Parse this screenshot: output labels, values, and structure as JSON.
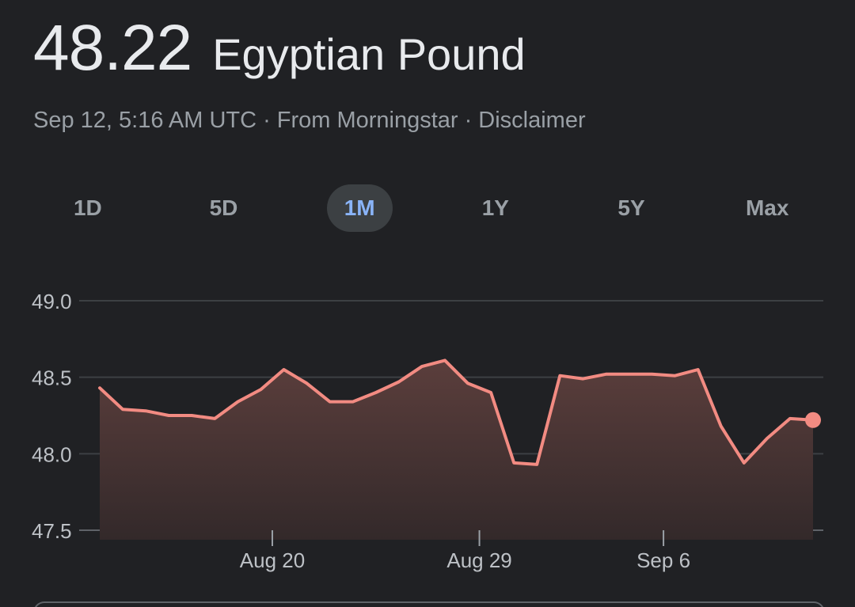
{
  "header": {
    "price": "48.22",
    "currency": "Egyptian Pound"
  },
  "meta": {
    "timestamp": "Sep 12, 5:16 AM UTC",
    "source": "From Morningstar",
    "disclaimer": "Disclaimer"
  },
  "ranges": {
    "items": [
      "1D",
      "5D",
      "1M",
      "1Y",
      "5Y",
      "Max"
    ],
    "selected": "1M"
  },
  "colors": {
    "line": "#f28b82",
    "fill_top": "#5b3e3c",
    "fill_bottom": "#33292a",
    "grid": "#3c4043",
    "axis_text": "#bdc1c6",
    "accent": "#8ab4f8"
  },
  "chart_data": {
    "type": "area",
    "title": "",
    "xlabel": "",
    "ylabel": "",
    "ylim": [
      47.5,
      49.0
    ],
    "y_ticks": [
      "49.0",
      "48.5",
      "48.0",
      "47.5"
    ],
    "x_ticks": [
      "Aug 20",
      "Aug 29",
      "Sep 6"
    ],
    "grid": true,
    "series": [
      {
        "values": [
          48.43,
          48.29,
          48.28,
          48.25,
          48.25,
          48.23,
          48.34,
          48.42,
          48.55,
          48.46,
          48.34,
          48.34,
          48.4,
          48.47,
          48.57,
          48.61,
          48.46,
          48.4,
          47.94,
          47.93,
          48.51,
          48.49,
          48.52,
          48.52,
          48.52,
          48.51,
          48.55,
          48.18,
          47.94,
          48.1,
          48.23,
          48.22
        ]
      }
    ],
    "last_point_highlighted": true
  }
}
